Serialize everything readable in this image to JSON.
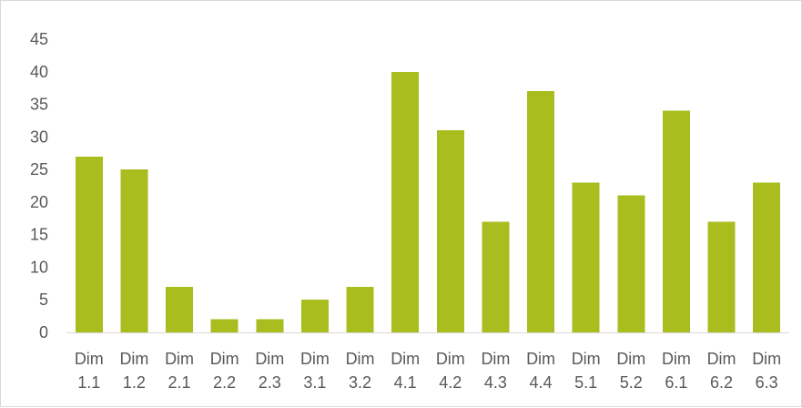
{
  "chart_data": {
    "type": "bar",
    "title": "",
    "xlabel": "",
    "ylabel": "",
    "categories": [
      [
        "Dim",
        "1.1"
      ],
      [
        "Dim",
        "1.2"
      ],
      [
        "Dim",
        "2.1"
      ],
      [
        "Dim",
        "2.2"
      ],
      [
        "Dim",
        "2.3"
      ],
      [
        "Dim",
        "3.1"
      ],
      [
        "Dim",
        "3.2"
      ],
      [
        "Dim",
        "4.1"
      ],
      [
        "Dim",
        "4.2"
      ],
      [
        "Dim",
        "4.3"
      ],
      [
        "Dim",
        "4.4"
      ],
      [
        "Dim",
        "5.1"
      ],
      [
        "Dim",
        "5.2"
      ],
      [
        "Dim",
        "6.1"
      ],
      [
        "Dim",
        "6.2"
      ],
      [
        "Dim",
        "6.3"
      ]
    ],
    "values": [
      27,
      25,
      7,
      2,
      2,
      5,
      7,
      40,
      31,
      17,
      37,
      23,
      21,
      34,
      17,
      23
    ],
    "ylim": [
      0,
      45
    ],
    "yticks": [
      "0",
      "5",
      "10",
      "15",
      "20",
      "25",
      "30",
      "35",
      "40",
      "45"
    ],
    "grid": false,
    "legend": "none",
    "bar_color": "#a9bd1e",
    "axis_color": "#d9d9d9",
    "label_color": "#595959"
  }
}
